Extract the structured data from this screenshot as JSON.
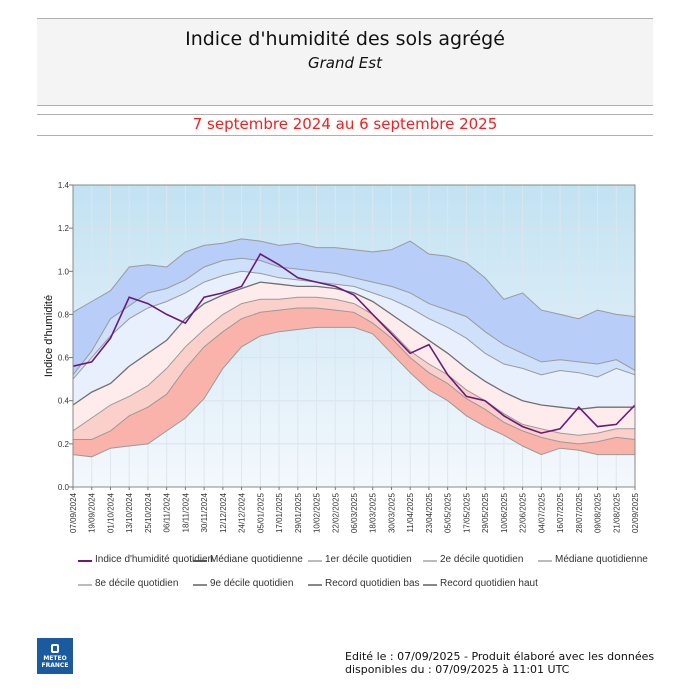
{
  "header": {
    "title": "Indice d'humidité des sols agrégé",
    "subtitle": "Grand Est",
    "period": "7 septembre 2024 au 6 septembre 2025"
  },
  "footer": {
    "line1": "Edité le : 07/09/2025 - Produit élaboré avec les données",
    "line2": "disponibles du : 07/09/2025 à 11:01 UTC",
    "logo_line1": "METEO",
    "logo_line2": "FRANCE"
  },
  "colors": {
    "index_line": "#6b1a7a",
    "median_line": "#707070",
    "decile_line": "#9a9a9a",
    "band_high_record": "#b8cdf8",
    "band_9_8": "#cfe0fb",
    "band_8_med": "#e8f0fe",
    "band_med_2": "#fdeceb",
    "band_2_1": "#fcd0ca",
    "band_1_low": "#f9b3aa",
    "plot_bg_top": "#c2e2f2",
    "plot_bg_bottom": "#f4f8fd"
  },
  "legend": [
    {
      "label": "Indice d'humidité quotidien",
      "color": "#6b1a7a"
    },
    {
      "label": "Médiane quotidienne",
      "color": "#555555"
    },
    {
      "label": "1er décile quotidien",
      "color": "#bbbbbb"
    },
    {
      "label": "2e décile quotidien",
      "color": "#bbbbbb"
    },
    {
      "label": "Médiane quotidienne",
      "color": "#bbbbbb"
    },
    {
      "label": "8e décile quotidien",
      "color": "#bbbbbb"
    },
    {
      "label": "9e décile quotidien",
      "color": "#888888"
    },
    {
      "label": "Record quotidien bas",
      "color": "#888888"
    },
    {
      "label": "Record quotidien haut",
      "color": "#888888"
    }
  ],
  "chart_data": {
    "type": "area",
    "ylabel": "Indice d'humidité",
    "xlabel": "",
    "ylim": [
      0.0,
      1.4
    ],
    "yticks": [
      "0.0",
      "0.2",
      "0.4",
      "0.6",
      "0.8",
      "1.0",
      "1.2",
      "1.4"
    ],
    "grid": true,
    "legend_position": "bottom",
    "x": [
      "07/09/2024",
      "19/09/2024",
      "01/10/2024",
      "13/10/2024",
      "25/10/2024",
      "06/11/2024",
      "18/11/2024",
      "30/11/2024",
      "12/12/2024",
      "24/12/2024",
      "05/01/2025",
      "17/01/2025",
      "29/01/2025",
      "10/02/2025",
      "22/02/2025",
      "06/03/2025",
      "18/03/2025",
      "30/03/2025",
      "11/04/2025",
      "23/04/2025",
      "05/05/2025",
      "17/05/2025",
      "29/05/2025",
      "10/06/2025",
      "22/06/2025",
      "04/07/2025",
      "16/07/2025",
      "28/07/2025",
      "09/08/2025",
      "21/08/2025",
      "02/09/2025"
    ],
    "series": [
      {
        "name": "Record quotidien haut",
        "values": [
          0.81,
          0.86,
          0.91,
          1.02,
          1.03,
          1.02,
          1.09,
          1.12,
          1.13,
          1.15,
          1.14,
          1.12,
          1.13,
          1.11,
          1.11,
          1.1,
          1.09,
          1.1,
          1.14,
          1.08,
          1.07,
          1.04,
          0.97,
          0.87,
          0.9,
          0.82,
          0.8,
          0.78,
          0.82,
          0.8,
          0.79
        ]
      },
      {
        "name": "9e décile quotidien",
        "values": [
          0.52,
          0.63,
          0.78,
          0.84,
          0.9,
          0.92,
          0.96,
          1.02,
          1.05,
          1.06,
          1.05,
          1.02,
          1.01,
          1.0,
          0.99,
          0.97,
          0.95,
          0.93,
          0.9,
          0.85,
          0.82,
          0.79,
          0.72,
          0.66,
          0.62,
          0.58,
          0.59,
          0.58,
          0.57,
          0.59,
          0.54
        ]
      },
      {
        "name": "8e décile quotidien",
        "values": [
          0.5,
          0.6,
          0.7,
          0.78,
          0.83,
          0.86,
          0.9,
          0.95,
          0.98,
          1.0,
          0.99,
          0.97,
          0.96,
          0.95,
          0.94,
          0.93,
          0.9,
          0.87,
          0.83,
          0.78,
          0.74,
          0.69,
          0.62,
          0.57,
          0.55,
          0.52,
          0.54,
          0.53,
          0.51,
          0.55,
          0.52
        ]
      },
      {
        "name": "Médiane quotidienne",
        "values": [
          0.38,
          0.44,
          0.48,
          0.56,
          0.62,
          0.68,
          0.78,
          0.85,
          0.89,
          0.92,
          0.95,
          0.94,
          0.93,
          0.93,
          0.92,
          0.9,
          0.86,
          0.8,
          0.74,
          0.68,
          0.62,
          0.55,
          0.49,
          0.44,
          0.4,
          0.38,
          0.37,
          0.36,
          0.37,
          0.37,
          0.37
        ]
      },
      {
        "name": "2e décile quotidien",
        "values": [
          0.26,
          0.32,
          0.38,
          0.42,
          0.47,
          0.55,
          0.65,
          0.73,
          0.8,
          0.85,
          0.87,
          0.87,
          0.88,
          0.88,
          0.87,
          0.85,
          0.8,
          0.72,
          0.63,
          0.57,
          0.52,
          0.45,
          0.4,
          0.34,
          0.29,
          0.27,
          0.25,
          0.24,
          0.25,
          0.27,
          0.27
        ]
      },
      {
        "name": "1er décile quotidien",
        "values": [
          0.22,
          0.22,
          0.26,
          0.33,
          0.37,
          0.43,
          0.55,
          0.65,
          0.72,
          0.78,
          0.81,
          0.82,
          0.83,
          0.83,
          0.82,
          0.81,
          0.76,
          0.69,
          0.6,
          0.53,
          0.48,
          0.41,
          0.36,
          0.3,
          0.26,
          0.23,
          0.21,
          0.2,
          0.21,
          0.23,
          0.22
        ]
      },
      {
        "name": "Record quotidien bas",
        "values": [
          0.15,
          0.14,
          0.18,
          0.19,
          0.2,
          0.26,
          0.32,
          0.41,
          0.55,
          0.65,
          0.7,
          0.72,
          0.73,
          0.74,
          0.74,
          0.74,
          0.71,
          0.62,
          0.53,
          0.45,
          0.4,
          0.33,
          0.28,
          0.24,
          0.19,
          0.15,
          0.18,
          0.17,
          0.15,
          0.15,
          0.15
        ]
      },
      {
        "name": "Indice d'humidité quotidien",
        "values": [
          0.56,
          0.58,
          0.69,
          0.88,
          0.85,
          0.8,
          0.76,
          0.88,
          0.9,
          0.93,
          1.08,
          1.03,
          0.97,
          0.95,
          0.93,
          0.89,
          0.8,
          0.71,
          0.62,
          0.66,
          0.52,
          0.42,
          0.4,
          0.33,
          0.28,
          0.25,
          0.27,
          0.37,
          0.28,
          0.29,
          0.38
        ]
      }
    ]
  }
}
